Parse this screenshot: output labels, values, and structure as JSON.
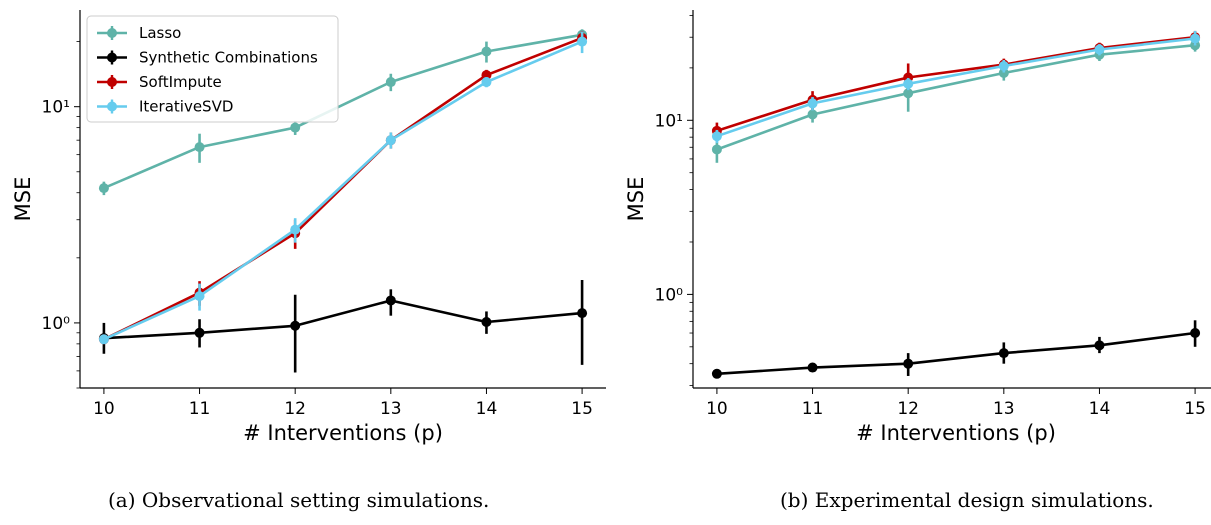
{
  "chart_data": [
    {
      "type": "line",
      "caption": "(a) Observational setting simulations.",
      "xlabel": "# Interventions (p)",
      "ylabel": "MSE",
      "yscale": "log",
      "x": [
        10,
        11,
        12,
        13,
        14,
        15
      ],
      "xlim": [
        9.75,
        15.25
      ],
      "ylim": [
        0.5,
        28
      ],
      "yticks": [
        {
          "value": 1,
          "label": "10⁰"
        },
        {
          "value": 10,
          "label": "10¹"
        }
      ],
      "legend": "upper-left",
      "series": [
        {
          "name": "Lasso",
          "color": "#5fb3a8",
          "values": [
            4.2,
            6.5,
            8.0,
            13.0,
            18.0,
            21.5
          ],
          "err_low": [
            3.9,
            5.5,
            7.4,
            11.8,
            16.0,
            20.2
          ],
          "err_high": [
            4.5,
            7.5,
            8.6,
            14.2,
            20.0,
            22.8
          ]
        },
        {
          "name": "Synthetic Combinations",
          "color": "#000000",
          "values": [
            0.85,
            0.9,
            0.97,
            1.27,
            1.01,
            1.11
          ],
          "err_low": [
            0.72,
            0.77,
            0.59,
            1.08,
            0.89,
            0.64
          ],
          "err_high": [
            1.0,
            1.04,
            1.35,
            1.43,
            1.13,
            1.58
          ]
        },
        {
          "name": "SoftImpute",
          "color": "#c00000",
          "values": [
            0.84,
            1.38,
            2.6,
            7.0,
            14.0,
            20.8
          ],
          "err_low": [
            0.82,
            1.2,
            2.2,
            6.4,
            13.2,
            19.3
          ],
          "err_high": [
            0.86,
            1.56,
            3.0,
            7.6,
            14.8,
            22.4
          ]
        },
        {
          "name": "IterativeSVD",
          "color": "#66ccee",
          "values": [
            0.84,
            1.33,
            2.7,
            7.0,
            13.0,
            20.0
          ],
          "err_low": [
            0.82,
            1.14,
            2.35,
            6.4,
            12.3,
            17.7
          ],
          "err_high": [
            0.86,
            1.52,
            3.05,
            7.6,
            13.7,
            22.3
          ]
        }
      ]
    },
    {
      "type": "line",
      "caption": "(b) Experimental design simulations.",
      "xlabel": "# Interventions (p)",
      "ylabel": "MSE",
      "yscale": "log",
      "x": [
        10,
        11,
        12,
        13,
        14,
        15
      ],
      "xlim": [
        9.75,
        15.25
      ],
      "ylim": [
        0.29,
        43
      ],
      "yticks": [
        {
          "value": 1,
          "label": "10⁰"
        },
        {
          "value": 10,
          "label": "10¹"
        }
      ],
      "series": [
        {
          "name": "Lasso",
          "color": "#5fb3a8",
          "values": [
            6.8,
            10.8,
            14.3,
            18.7,
            23.8,
            27.0
          ],
          "err_low": [
            5.7,
            9.7,
            11.2,
            16.9,
            21.9,
            24.8
          ],
          "err_high": [
            7.9,
            11.9,
            17.4,
            20.5,
            25.7,
            29.2
          ]
        },
        {
          "name": "Synthetic Combinations",
          "color": "#000000",
          "values": [
            0.35,
            0.38,
            0.4,
            0.46,
            0.51,
            0.6
          ],
          "err_low": [
            0.34,
            0.36,
            0.34,
            0.4,
            0.46,
            0.5
          ],
          "err_high": [
            0.36,
            0.4,
            0.46,
            0.53,
            0.57,
            0.71
          ]
        },
        {
          "name": "SoftImpute",
          "color": "#c00000",
          "values": [
            8.7,
            13.1,
            17.6,
            20.9,
            26.0,
            30.0
          ],
          "err_low": [
            7.7,
            11.5,
            15.0,
            19.2,
            24.1,
            27.4
          ],
          "err_high": [
            9.7,
            14.7,
            21.2,
            22.6,
            27.9,
            32.6
          ]
        },
        {
          "name": "IterativeSVD",
          "color": "#66ccee",
          "values": [
            8.1,
            12.5,
            16.2,
            20.5,
            25.5,
            29.5
          ],
          "err_low": [
            7.4,
            11.4,
            14.9,
            18.8,
            23.6,
            26.9
          ],
          "err_high": [
            8.8,
            13.6,
            17.5,
            22.2,
            27.4,
            32.6
          ]
        }
      ]
    }
  ]
}
